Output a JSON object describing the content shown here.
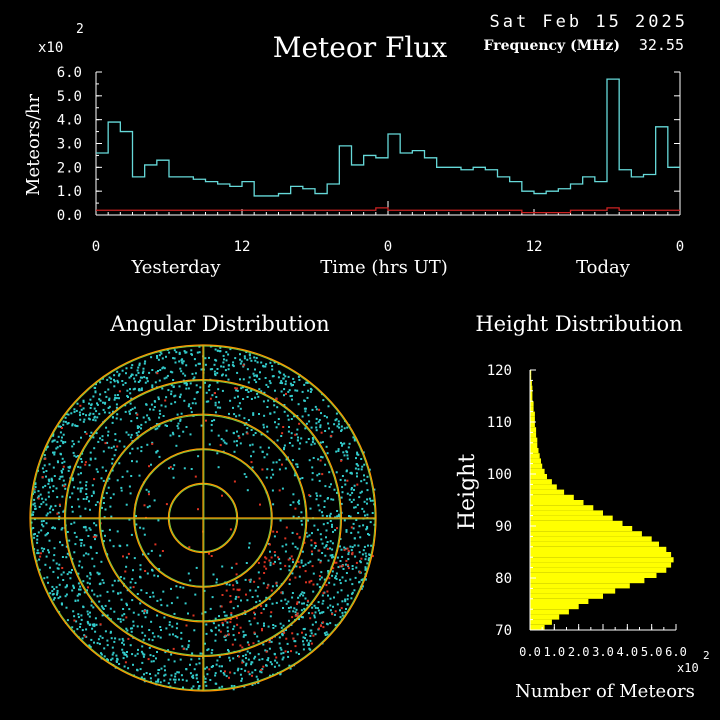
{
  "header": {
    "date": "Sat Feb 15 2025",
    "multiplier_base": "x10",
    "multiplier_exp": "2",
    "title": "Meteor Flux",
    "freq_label": "Frequency (MHz)",
    "freq_value": "32.55"
  },
  "colors": {
    "background": "#000000",
    "flux_line": "#66d9d9",
    "baseline_line": "#cc2222",
    "axes": "#ffffff",
    "points_cyan": "#33cccc",
    "points_red": "#dd3322",
    "rings_orange": "#ff9900",
    "grid_green": "#77cc44",
    "bars_yellow": "#ffff00"
  },
  "chart_data": [
    {
      "type": "line",
      "title": "Meteor Flux",
      "ylabel": "Meteors/hr",
      "xlabel": "Time (hrs UT)",
      "day_labels": [
        "Yesterday",
        "Today"
      ],
      "x_tick_labels": [
        "0",
        "12",
        "0",
        "12",
        "0"
      ],
      "y_tick_labels": [
        "0.0",
        "1.0",
        "2.0",
        "3.0",
        "4.0",
        "5.0",
        "6.0"
      ],
      "ylim": [
        0,
        6
      ],
      "xlim": [
        0,
        48
      ],
      "step": true,
      "series": [
        {
          "values": [
            2.6,
            3.9,
            3.5,
            1.6,
            2.1,
            2.3,
            1.6,
            1.6,
            1.5,
            1.4,
            1.3,
            1.2,
            1.4,
            0.8,
            0.8,
            0.9,
            1.2,
            1.1,
            0.9,
            1.3,
            2.9,
            2.1,
            2.5,
            2.4,
            3.4,
            2.6,
            2.7,
            2.4,
            2.0,
            2.0,
            1.9,
            2.0,
            1.9,
            1.6,
            1.4,
            1.0,
            0.9,
            1.0,
            1.1,
            1.3,
            1.6,
            1.4,
            5.7,
            1.9,
            1.6,
            1.7,
            3.7,
            2.0
          ]
        },
        {
          "values": [
            0.2,
            0.2,
            0.2,
            0.2,
            0.2,
            0.2,
            0.2,
            0.2,
            0.2,
            0.2,
            0.2,
            0.2,
            0.2,
            0.2,
            0.2,
            0.2,
            0.2,
            0.2,
            0.2,
            0.2,
            0.2,
            0.2,
            0.2,
            0.3,
            0.2,
            0.2,
            0.2,
            0.2,
            0.2,
            0.2,
            0.2,
            0.2,
            0.2,
            0.2,
            0.2,
            0.1,
            0.1,
            0.1,
            0.1,
            0.2,
            0.2,
            0.2,
            0.3,
            0.2,
            0.2,
            0.2,
            0.2,
            0.2
          ]
        }
      ]
    },
    {
      "type": "scatter",
      "title": "Angular Distribution",
      "polar": true,
      "rings": 5
    },
    {
      "type": "bar",
      "orientation": "horizontal",
      "title": "Height Distribution",
      "ylabel": "Height",
      "xlabel": "Number of Meteors",
      "x_multiplier_base": "x10",
      "x_multiplier_exp": "2",
      "x_tick_labels": [
        "0.0",
        "1.0",
        "2.0",
        "3.0",
        "4.0",
        "5.0",
        "6.0"
      ],
      "xlim": [
        0,
        6
      ],
      "y_tick_labels": [
        "70",
        "80",
        "90",
        "100",
        "110",
        "120"
      ],
      "ylim": [
        70,
        120
      ],
      "heights": [
        70,
        71,
        72,
        73,
        74,
        75,
        76,
        77,
        78,
        79,
        80,
        81,
        82,
        83,
        84,
        85,
        86,
        87,
        88,
        89,
        90,
        91,
        92,
        93,
        94,
        95,
        96,
        97,
        98,
        99,
        100,
        101,
        102,
        103,
        104,
        105,
        106,
        107,
        108,
        109,
        110,
        111,
        112,
        113,
        114,
        115,
        116,
        117,
        118,
        119
      ],
      "values": [
        0.6,
        0.9,
        1.2,
        1.6,
        2.0,
        2.4,
        3.0,
        3.5,
        4.1,
        4.7,
        5.2,
        5.6,
        5.8,
        5.9,
        5.8,
        5.6,
        5.3,
        5.0,
        4.6,
        4.2,
        3.8,
        3.4,
        3.0,
        2.6,
        2.2,
        1.8,
        1.4,
        1.1,
        0.9,
        0.7,
        0.6,
        0.5,
        0.45,
        0.4,
        0.35,
        0.3,
        0.3,
        0.25,
        0.25,
        0.2,
        0.2,
        0.2,
        0.15,
        0.15,
        0.1,
        0.1,
        0.1,
        0.08,
        0.05,
        0.05
      ]
    }
  ]
}
